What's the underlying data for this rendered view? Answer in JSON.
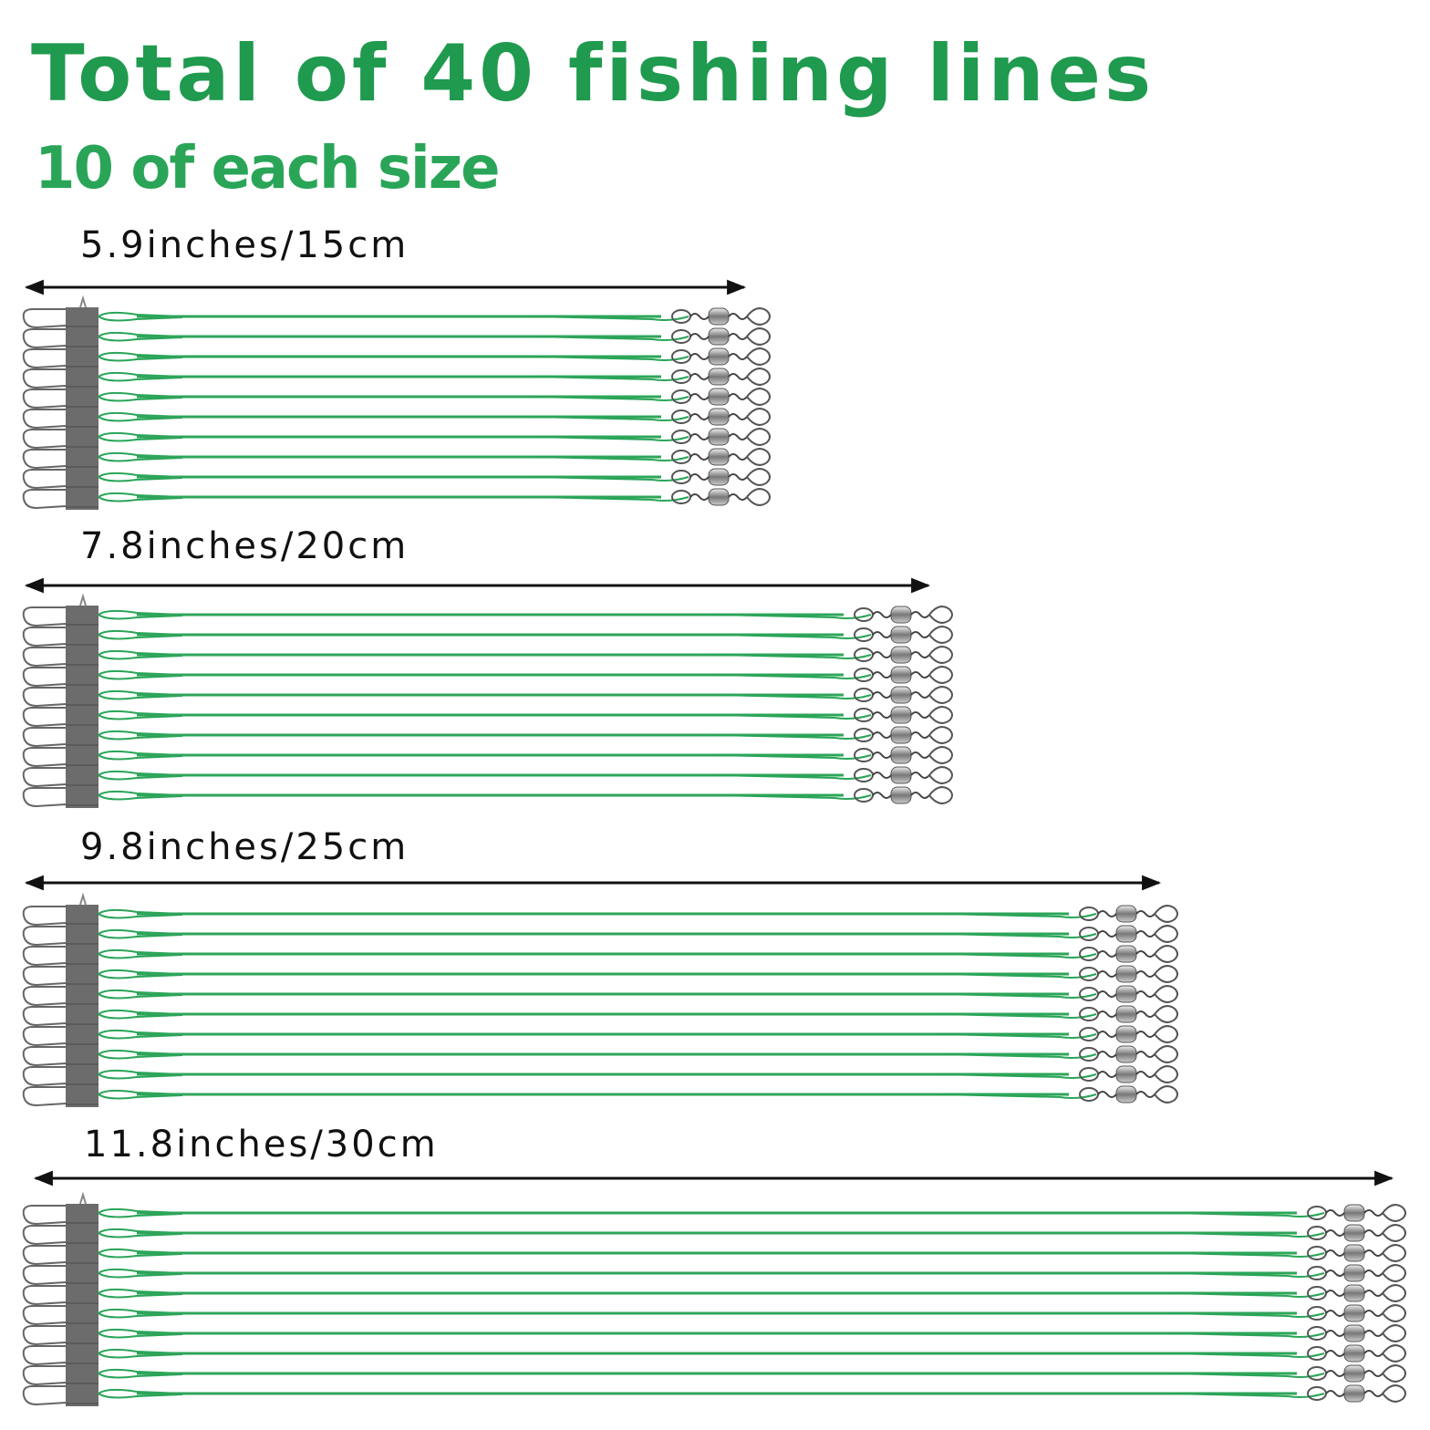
{
  "header": {
    "title": "Total of 40 fishing lines",
    "subtitle": "10 of each size"
  },
  "groups": [
    {
      "label": "5.9inches/15cm"
    },
    {
      "label": "7.8inches/20cm"
    },
    {
      "label": "9.8inches/25cm"
    },
    {
      "label": "11.8inches/30cm"
    }
  ]
}
